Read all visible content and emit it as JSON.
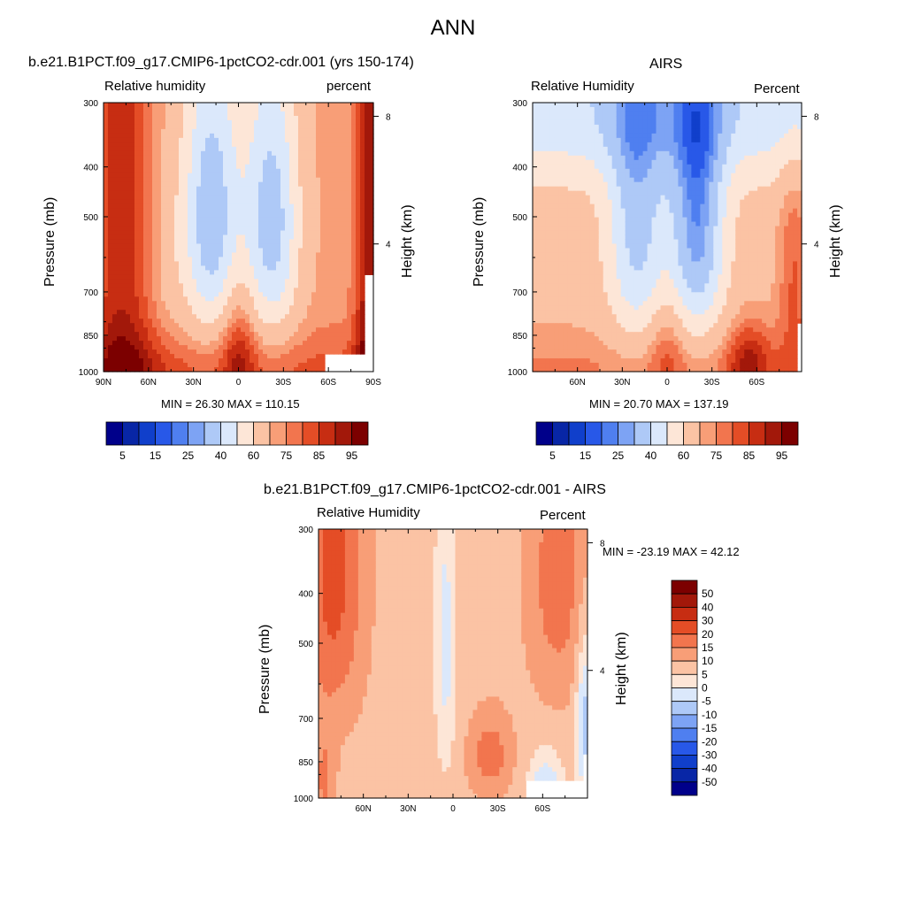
{
  "main_title": "ANN",
  "panels": {
    "p1": {
      "title": "b.e21.B1PCT.f09_g17.CMIP6-1pctCO2-cdr.001 (yrs 150-174)",
      "left_label": "Relative humidity",
      "right_label": "percent",
      "y_title": "Pressure (mb)",
      "y2_title": "Height (km)",
      "stat_text": "MIN =  26.30  MAX = 110.15"
    },
    "p2": {
      "title": "AIRS",
      "left_label": "Relative Humidity",
      "right_label": "Percent",
      "y_title": "Pressure (mb)",
      "y2_title": "Height (km)",
      "stat_text": "MIN =  20.70  MAX = 137.19"
    },
    "p3": {
      "title": "b.e21.B1PCT.f09_g17.CMIP6-1pctCO2-cdr.001 - AIRS",
      "left_label": "Relative Humidity",
      "right_label": "Percent",
      "y_title": "Pressure (mb)",
      "y2_title": "Height (km)",
      "stat_text": "MIN = -23.19  MAX =  42.12"
    }
  },
  "chart_data": [
    {
      "type": "heatmap",
      "title": "b.e21.B1PCT.f09_g17.CMIP6-1pctCO2-cdr.001 (yrs 150-174)",
      "variable": "Relative humidity",
      "units": "percent",
      "x_ticks": [
        "90N",
        "60N",
        "30N",
        "0",
        "30S",
        "60S",
        "90S"
      ],
      "x_tick_positions_deg": [
        90,
        60,
        30,
        0,
        -30,
        -60,
        -90
      ],
      "xlim": [
        90,
        -90
      ],
      "y_ticks": [
        300,
        400,
        500,
        700,
        850,
        1000
      ],
      "ylim": [
        1000,
        300
      ],
      "ylog": true,
      "y2_ticks": [
        8,
        4
      ],
      "ylabel": "Pressure (mb)",
      "y2label": "Height (km)",
      "min": 26.3,
      "max": 110.15,
      "colorbar_levels": [
        5,
        10,
        15,
        20,
        25,
        30,
        40,
        50,
        60,
        70,
        75,
        80,
        85,
        90,
        95
      ],
      "colorbar_labels": [
        "5",
        "15",
        "25",
        "40",
        "60",
        "75",
        "85",
        "95"
      ],
      "colors": [
        "#00008a",
        "#0826a6",
        "#103fcb",
        "#2858e8",
        "#4f7ff0",
        "#7da3f4",
        "#aec9f7",
        "#dbe8fb",
        "#fde6d7",
        "#fbc3a4",
        "#f89e77",
        "#f2754e",
        "#e44d26",
        "#c72d12",
        "#a2180a",
        "#7c0000"
      ]
    },
    {
      "type": "heatmap",
      "title": "AIRS",
      "variable": "Relative Humidity",
      "units": "Percent",
      "x_ticks": [
        "60N",
        "30N",
        "0",
        "30S",
        "60S"
      ],
      "x_tick_positions_deg": [
        60,
        30,
        0,
        -30,
        -60
      ],
      "xlim": [
        90,
        -90
      ],
      "y_ticks": [
        300,
        400,
        500,
        700,
        850,
        1000
      ],
      "ylim": [
        1000,
        300
      ],
      "ylog": true,
      "y2_ticks": [
        8,
        4
      ],
      "ylabel": "Pressure (mb)",
      "y2label": "Height (km)",
      "min": 20.7,
      "max": 137.19,
      "colorbar_levels": [
        5,
        10,
        15,
        20,
        25,
        30,
        40,
        50,
        60,
        70,
        75,
        80,
        85,
        90,
        95
      ],
      "colorbar_labels": [
        "5",
        "15",
        "25",
        "40",
        "60",
        "75",
        "85",
        "95"
      ],
      "colors": [
        "#00008a",
        "#0826a6",
        "#103fcb",
        "#2858e8",
        "#4f7ff0",
        "#7da3f4",
        "#aec9f7",
        "#dbe8fb",
        "#fde6d7",
        "#fbc3a4",
        "#f89e77",
        "#f2754e",
        "#e44d26",
        "#c72d12",
        "#a2180a",
        "#7c0000"
      ]
    },
    {
      "type": "heatmap",
      "title": "b.e21.B1PCT.f09_g17.CMIP6-1pctCO2-cdr.001 - AIRS",
      "variable": "Relative Humidity",
      "units": "Percent",
      "x_ticks": [
        "60N",
        "30N",
        "0",
        "30S",
        "60S"
      ],
      "x_tick_positions_deg": [
        60,
        30,
        0,
        -30,
        -60
      ],
      "xlim": [
        90,
        -90
      ],
      "y_ticks": [
        300,
        400,
        500,
        700,
        850,
        1000
      ],
      "ylim": [
        1000,
        300
      ],
      "ylog": true,
      "y2_ticks": [
        8,
        4
      ],
      "ylabel": "Pressure (mb)",
      "y2label": "Height (km)",
      "min": -23.19,
      "max": 42.12,
      "colorbar_levels": [
        -50,
        -40,
        -30,
        -20,
        -15,
        -10,
        -5,
        0,
        5,
        10,
        15,
        20,
        30,
        40,
        50
      ],
      "colorbar_labels": [
        "50",
        "40",
        "30",
        "20",
        "15",
        "10",
        "5",
        "0",
        "-5",
        "-10",
        "-15",
        "-20",
        "-30",
        "-40",
        "-50"
      ],
      "colors": [
        "#00008a",
        "#0826a6",
        "#103fcb",
        "#2858e8",
        "#4f7ff0",
        "#7da3f4",
        "#aec9f7",
        "#dbe8fb",
        "#fde6d7",
        "#fbc3a4",
        "#f89e77",
        "#f2754e",
        "#e44d26",
        "#c72d12",
        "#a2180a",
        "#7c0000"
      ]
    }
  ]
}
